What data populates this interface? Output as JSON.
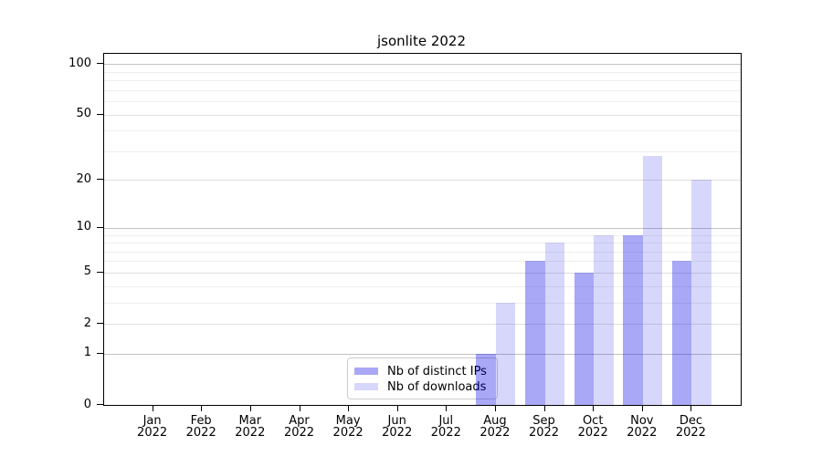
{
  "title": "jsonlite 2022",
  "colors": {
    "bar_ips": "rgba(0,0,230,0.34)",
    "bar_downloads": "rgba(0,0,230,0.155)",
    "grid_emphasis": "#c2c2c2",
    "grid_labeled": "#dfdfdf",
    "grid_minor": "#eeeeee",
    "axis": "#000000",
    "legend_border": "#cccccc"
  },
  "chart_data": {
    "type": "bar",
    "title": "jsonlite 2022",
    "categories": [
      "Jan",
      "Feb",
      "Mar",
      "Apr",
      "May",
      "Jun",
      "Jul",
      "Aug",
      "Sep",
      "Oct",
      "Nov",
      "Dec"
    ],
    "year": "2022",
    "series": [
      {
        "name": "Nb of distinct IPs",
        "values": [
          0,
          0,
          0,
          0,
          0,
          0,
          0,
          1,
          6,
          5,
          9,
          6
        ]
      },
      {
        "name": "Nb of downloads",
        "values": [
          0,
          0,
          0,
          0,
          0,
          0,
          0,
          3,
          8,
          9,
          28,
          20
        ]
      }
    ],
    "xlabel": "",
    "ylabel": "",
    "yaxis": {
      "scale": "log1p",
      "min": 0,
      "top_value": 115,
      "labeled_ticks": [
        {
          "v": 0,
          "label": "0"
        },
        {
          "v": 1,
          "label": "1"
        },
        {
          "v": 2,
          "label": "2"
        },
        {
          "v": 5,
          "label": "5"
        },
        {
          "v": 10,
          "label": "10"
        },
        {
          "v": 20,
          "label": "20"
        },
        {
          "v": 50,
          "label": "50"
        },
        {
          "v": 100,
          "label": "100"
        }
      ],
      "emphasized_gridlines": [
        1,
        10,
        100
      ],
      "light_labeled_gridlines": [
        2,
        5,
        20,
        50
      ],
      "minor_gridlines": [
        3,
        4,
        6,
        7,
        8,
        9,
        30,
        40,
        60,
        70,
        80,
        90
      ]
    },
    "grid": true,
    "legend": {
      "position": "lower center",
      "entries": [
        "Nb of distinct IPs",
        "Nb of downloads"
      ]
    }
  }
}
